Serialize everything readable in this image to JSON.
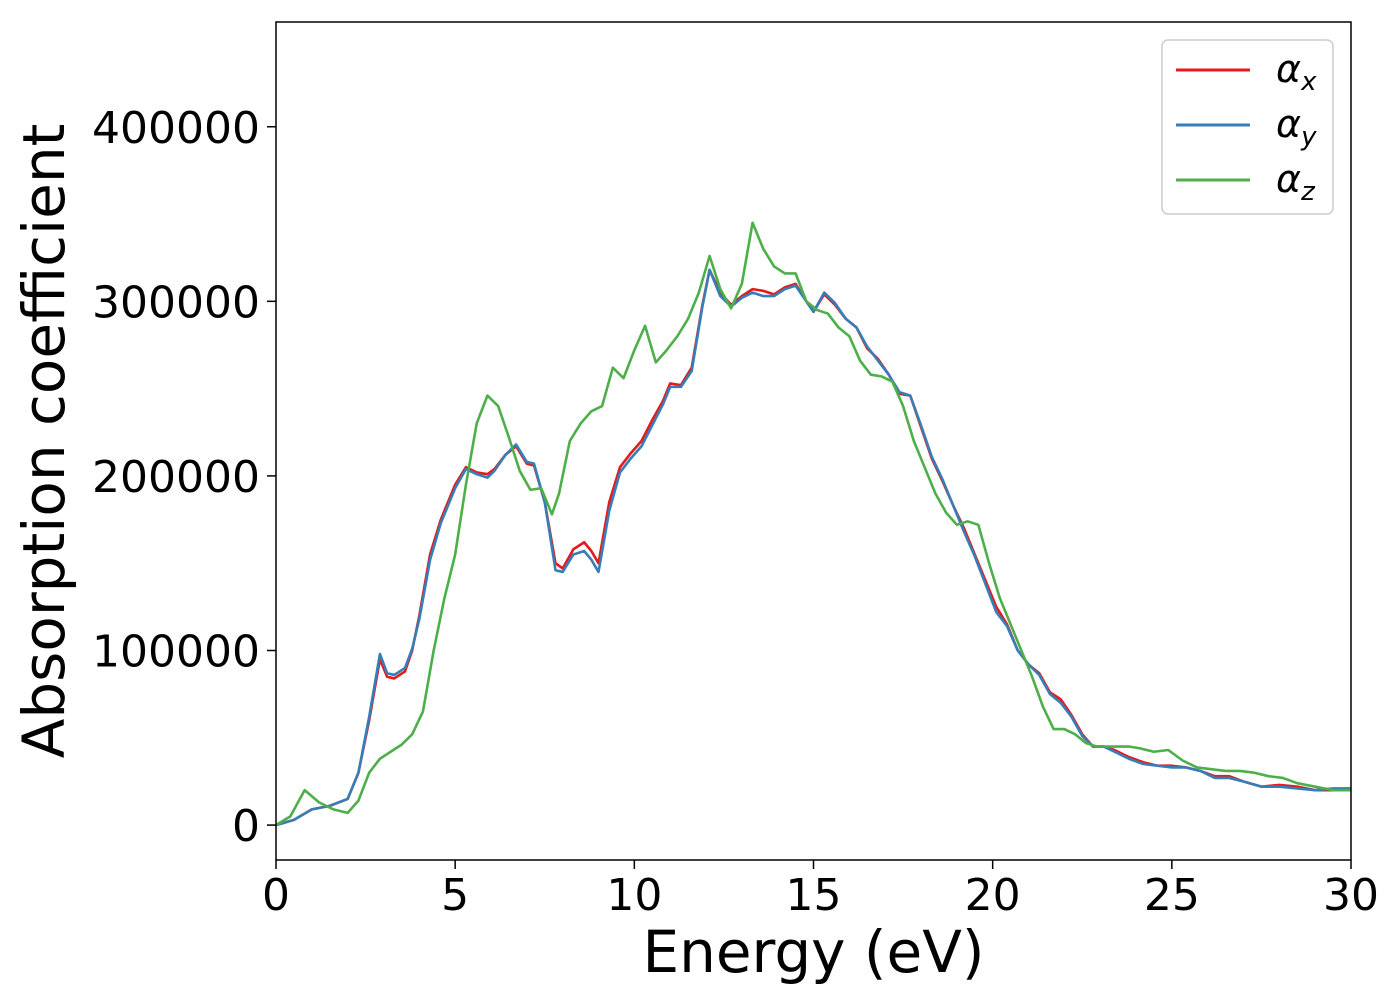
{
  "chart_data": {
    "type": "line",
    "xlabel": "Energy (eV)",
    "ylabel": "Absorption coefficient",
    "xlim": [
      0,
      30
    ],
    "ylim": [
      -20000,
      460000
    ],
    "xticks": [
      0,
      5,
      10,
      15,
      20,
      25,
      30
    ],
    "yticks": [
      0,
      100000,
      200000,
      300000,
      400000
    ],
    "grid": false,
    "legend_position": "top-right",
    "series": [
      {
        "name": "αx",
        "legend_base": "α",
        "legend_sub": "x",
        "color": "#e41a1c",
        "x": [
          0,
          0.5,
          1,
          1.5,
          2,
          2.3,
          2.6,
          2.9,
          3.1,
          3.3,
          3.6,
          3.8,
          4,
          4.3,
          4.6,
          5,
          5.3,
          5.6,
          5.9,
          6.1,
          6.4,
          6.7,
          7,
          7.2,
          7.5,
          7.8,
          8,
          8.3,
          8.6,
          8.8,
          9,
          9.3,
          9.6,
          9.9,
          10.2,
          10.5,
          10.8,
          11,
          11.3,
          11.6,
          11.9,
          12.1,
          12.4,
          12.7,
          13,
          13.3,
          13.6,
          13.9,
          14.2,
          14.5,
          14.8,
          15,
          15.3,
          15.6,
          15.9,
          16.2,
          16.5,
          16.8,
          17.1,
          17.4,
          17.7,
          18,
          18.3,
          18.6,
          18.9,
          19.2,
          19.5,
          19.8,
          20.1,
          20.4,
          20.7,
          21,
          21.3,
          21.6,
          21.9,
          22.2,
          22.5,
          22.8,
          23.1,
          23.4,
          23.8,
          24.2,
          24.6,
          25,
          25.4,
          25.8,
          26.2,
          26.6,
          27,
          27.5,
          28,
          28.5,
          29,
          29.5,
          30
        ],
        "y": [
          0,
          3000,
          9000,
          11000,
          15000,
          30000,
          60000,
          95000,
          85000,
          84000,
          88000,
          100000,
          120000,
          155000,
          175000,
          195000,
          205000,
          202000,
          201000,
          204000,
          212000,
          217000,
          207000,
          206000,
          185000,
          150000,
          147000,
          158000,
          162000,
          157000,
          150000,
          185000,
          205000,
          213000,
          220000,
          232000,
          243000,
          253000,
          252000,
          262000,
          298000,
          318000,
          305000,
          298000,
          303000,
          307000,
          306000,
          304000,
          308000,
          310000,
          300000,
          294000,
          304000,
          298000,
          290000,
          285000,
          273000,
          267000,
          258000,
          247000,
          246000,
          228000,
          210000,
          197000,
          183000,
          170000,
          155000,
          140000,
          125000,
          115000,
          100000,
          92000,
          87000,
          76000,
          72000,
          63000,
          52000,
          45000,
          45000,
          43000,
          39000,
          36000,
          34000,
          34000,
          33000,
          31000,
          28000,
          28000,
          25000,
          22000,
          23000,
          22000,
          20000,
          20000,
          21000
        ]
      },
      {
        "name": "αy",
        "legend_base": "α",
        "legend_sub": "y",
        "color": "#377eb8",
        "x": [
          0,
          0.5,
          1,
          1.5,
          2,
          2.3,
          2.6,
          2.9,
          3.1,
          3.3,
          3.6,
          3.8,
          4,
          4.3,
          4.6,
          5,
          5.3,
          5.6,
          5.9,
          6.1,
          6.4,
          6.7,
          7,
          7.2,
          7.5,
          7.8,
          8,
          8.3,
          8.6,
          8.8,
          9,
          9.3,
          9.6,
          9.9,
          10.2,
          10.5,
          10.8,
          11,
          11.3,
          11.6,
          11.9,
          12.1,
          12.4,
          12.7,
          13,
          13.3,
          13.6,
          13.9,
          14.2,
          14.5,
          14.8,
          15,
          15.3,
          15.6,
          15.9,
          16.2,
          16.5,
          16.8,
          17.1,
          17.4,
          17.7,
          18,
          18.3,
          18.6,
          18.9,
          19.2,
          19.5,
          19.8,
          20.1,
          20.4,
          20.7,
          21,
          21.3,
          21.6,
          21.9,
          22.2,
          22.5,
          22.8,
          23.1,
          23.4,
          23.8,
          24.2,
          24.6,
          25,
          25.4,
          25.8,
          26.2,
          26.6,
          27,
          27.5,
          28,
          28.5,
          29,
          29.5,
          30
        ],
        "y": [
          0,
          3000,
          9000,
          11000,
          15000,
          30000,
          62000,
          98000,
          87000,
          86000,
          90000,
          101000,
          118000,
          152000,
          173000,
          193000,
          204000,
          201000,
          199000,
          203000,
          212000,
          218000,
          208000,
          207000,
          185000,
          146000,
          145000,
          155000,
          157000,
          152000,
          145000,
          180000,
          202000,
          210000,
          217000,
          229000,
          241000,
          251000,
          251000,
          260000,
          297000,
          318000,
          303000,
          297000,
          302000,
          305000,
          303000,
          303000,
          307000,
          309000,
          300000,
          294000,
          305000,
          299000,
          290000,
          285000,
          274000,
          266000,
          258000,
          248000,
          246000,
          229000,
          211000,
          198000,
          183000,
          168000,
          154000,
          138000,
          122000,
          114000,
          100000,
          92000,
          86000,
          75000,
          70000,
          62000,
          51000,
          45000,
          45000,
          42000,
          38000,
          35000,
          34000,
          33000,
          33000,
          31000,
          27000,
          27000,
          25000,
          22000,
          22000,
          21000,
          20000,
          21000,
          21000
        ]
      },
      {
        "name": "αz",
        "legend_base": "α",
        "legend_sub": "z",
        "color": "#4daf4a",
        "x": [
          0,
          0.4,
          0.8,
          1.2,
          1.6,
          2,
          2.3,
          2.6,
          2.9,
          3.2,
          3.5,
          3.8,
          4.1,
          4.4,
          4.7,
          5,
          5.3,
          5.6,
          5.9,
          6.2,
          6.5,
          6.8,
          7.1,
          7.4,
          7.7,
          7.9,
          8.2,
          8.5,
          8.8,
          9.1,
          9.4,
          9.7,
          10,
          10.3,
          10.6,
          10.9,
          11.2,
          11.5,
          11.8,
          12.1,
          12.4,
          12.7,
          13,
          13.3,
          13.6,
          13.9,
          14.2,
          14.5,
          14.8,
          15.1,
          15.4,
          15.7,
          16,
          16.3,
          16.6,
          16.9,
          17.2,
          17.5,
          17.8,
          18.1,
          18.4,
          18.7,
          19,
          19.3,
          19.6,
          19.9,
          20.2,
          20.5,
          20.8,
          21.1,
          21.4,
          21.7,
          22,
          22.3,
          22.6,
          22.9,
          23.2,
          23.5,
          23.8,
          24.1,
          24.5,
          24.9,
          25.3,
          25.7,
          26.1,
          26.5,
          26.9,
          27.3,
          27.7,
          28.1,
          28.5,
          29,
          29.5,
          30
        ],
        "y": [
          0,
          5000,
          20000,
          13000,
          9000,
          7000,
          14000,
          30000,
          38000,
          42000,
          46000,
          52000,
          65000,
          100000,
          130000,
          155000,
          195000,
          230000,
          246000,
          240000,
          222000,
          203000,
          192000,
          193000,
          178000,
          190000,
          220000,
          230000,
          237000,
          240000,
          262000,
          256000,
          272000,
          286000,
          265000,
          272000,
          280000,
          290000,
          305000,
          326000,
          307000,
          296000,
          310000,
          345000,
          330000,
          320000,
          316000,
          316000,
          300000,
          295000,
          293000,
          285000,
          280000,
          266000,
          258000,
          257000,
          254000,
          240000,
          220000,
          205000,
          190000,
          179000,
          172000,
          174000,
          172000,
          150000,
          130000,
          115000,
          100000,
          85000,
          68000,
          55000,
          55000,
          52000,
          47000,
          45000,
          45000,
          45000,
          45000,
          44000,
          42000,
          43000,
          37000,
          33000,
          32000,
          31000,
          31000,
          30000,
          28000,
          27000,
          24000,
          22000,
          20000,
          20000
        ]
      }
    ]
  }
}
